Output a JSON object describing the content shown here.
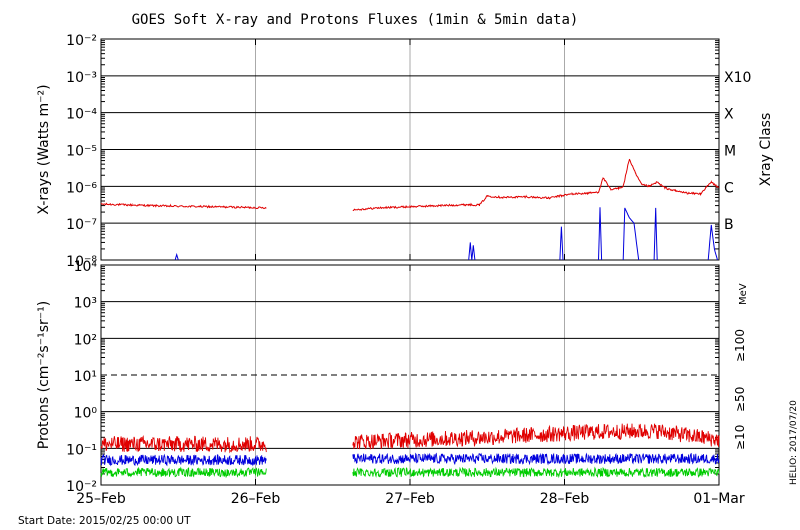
{
  "chart_data": [
    {
      "type": "line",
      "title": "GOES Soft X-ray and Protons Fluxes   (1min & 5min data)",
      "ylabel": "X-rays (Watts m⁻²)",
      "y_scale": "log",
      "ylim": [
        1e-08,
        0.01
      ],
      "y_ticks": [
        {
          "label": "10⁻²",
          "exp": -2
        },
        {
          "label": "10⁻³",
          "exp": -3
        },
        {
          "label": "10⁻⁴",
          "exp": -4
        },
        {
          "label": "10⁻⁵",
          "exp": -5
        },
        {
          "label": "10⁻⁶",
          "exp": -6
        },
        {
          "label": "10⁻⁷",
          "exp": -7
        },
        {
          "label": "10⁻⁸",
          "exp": -8
        }
      ],
      "right_axis_title": "Xray Class",
      "class_labels": [
        {
          "label": "X10",
          "exp": -3
        },
        {
          "label": "X",
          "exp": -4
        },
        {
          "label": "M",
          "exp": -5
        },
        {
          "label": "C",
          "exp": -6
        },
        {
          "label": "B",
          "exp": -7
        }
      ],
      "x_unit": "days since 2015-02-25 00:00 UT",
      "xlim": [
        0,
        4
      ],
      "series": [
        {
          "color": "#e00000",
          "segments": [
            [
              [
                0.0,
                3.3e-07
              ],
              [
                0.2,
                3.1e-07
              ],
              [
                0.45,
                2.9e-07
              ],
              [
                0.7,
                2.8e-07
              ],
              [
                0.9,
                2.7e-07
              ],
              [
                1.07,
                2.6e-07
              ]
            ],
            [
              [
                1.63,
                2.3e-07
              ],
              [
                1.8,
                2.6e-07
              ],
              [
                2.0,
                2.8e-07
              ],
              [
                2.2,
                3e-07
              ],
              [
                2.38,
                3.2e-07
              ],
              [
                2.45,
                3.1e-07
              ],
              [
                2.5,
                5.5e-07
              ],
              [
                2.6,
                5e-07
              ],
              [
                2.75,
                5.2e-07
              ],
              [
                2.9,
                4.8e-07
              ],
              [
                2.98,
                5.6e-07
              ],
              [
                3.05,
                6.2e-07
              ],
              [
                3.15,
                6.5e-07
              ],
              [
                3.22,
                7e-07
              ],
              [
                3.25,
                1.7e-06
              ],
              [
                3.3,
                8e-07
              ],
              [
                3.35,
                9e-07
              ],
              [
                3.38,
                1e-06
              ],
              [
                3.42,
                5.5e-06
              ],
              [
                3.46,
                2.2e-06
              ],
              [
                3.5,
                1.1e-06
              ],
              [
                3.55,
                1e-06
              ],
              [
                3.6,
                1.3e-06
              ],
              [
                3.65,
                9e-07
              ],
              [
                3.72,
                7.5e-07
              ],
              [
                3.8,
                6.5e-07
              ],
              [
                3.88,
                6.3e-07
              ],
              [
                3.95,
                1.3e-06
              ],
              [
                4.0,
                9e-07
              ]
            ]
          ]
        },
        {
          "color": "#0000dd",
          "segments": [
            [
              [
                0.48,
                1e-08
              ],
              [
                0.49,
                1.4e-08
              ],
              [
                0.5,
                1e-08
              ]
            ],
            [
              [
                2.38,
                1e-08
              ],
              [
                2.39,
                3e-08
              ],
              [
                2.4,
                1e-08
              ],
              [
                2.41,
                2.5e-08
              ],
              [
                2.42,
                1e-08
              ]
            ],
            [
              [
                2.97,
                1e-08
              ],
              [
                2.98,
                8e-08
              ],
              [
                2.99,
                1e-08
              ]
            ],
            [
              [
                3.22,
                1e-08
              ],
              [
                3.23,
                2.7e-07
              ],
              [
                3.24,
                1e-08
              ]
            ],
            [
              [
                3.38,
                1e-08
              ],
              [
                3.39,
                2.6e-07
              ],
              [
                3.42,
                1.4e-07
              ],
              [
                3.45,
                1e-07
              ],
              [
                3.48,
                1e-08
              ]
            ],
            [
              [
                3.58,
                1e-08
              ],
              [
                3.59,
                2.6e-07
              ],
              [
                3.6,
                1e-08
              ]
            ],
            [
              [
                3.93,
                1e-08
              ],
              [
                3.95,
                9e-08
              ],
              [
                3.97,
                2e-08
              ],
              [
                3.99,
                1e-08
              ]
            ]
          ]
        }
      ]
    },
    {
      "type": "line",
      "ylabel": "Protons (cm⁻²s⁻¹sr⁻¹)",
      "y_scale": "log",
      "ylim": [
        0.01,
        10000
      ],
      "y_ticks": [
        {
          "label": "10⁴",
          "exp": 4
        },
        {
          "label": "10³",
          "exp": 3
        },
        {
          "label": "10²",
          "exp": 2
        },
        {
          "label": "10¹",
          "exp": 1
        },
        {
          "label": "10⁰",
          "exp": 0
        },
        {
          "label": "10⁻¹",
          "exp": -1
        },
        {
          "label": "10⁻²",
          "exp": -2
        }
      ],
      "threshold_exp": 1,
      "x_unit": "days since 2015-02-25 00:00 UT",
      "xlim": [
        0,
        4
      ],
      "xticks": [
        {
          "label": "25–Feb",
          "value": 0
        },
        {
          "label": "26–Feb",
          "value": 1
        },
        {
          "label": "27–Feb",
          "value": 2
        },
        {
          "label": "28–Feb",
          "value": 3
        },
        {
          "label": "01–Mar",
          "value": 4
        }
      ],
      "data_gap": [
        1.07,
        1.63
      ],
      "series": [
        {
          "name": "≥10",
          "color": "#e00000",
          "baseline": [
            [
              0,
              0.13
            ],
            [
              1.07,
              0.13
            ],
            [
              1.63,
              0.15
            ],
            [
              2.5,
              0.2
            ],
            [
              3.2,
              0.28
            ],
            [
              3.6,
              0.3
            ],
            [
              4.0,
              0.17
            ]
          ],
          "spread": 0.22
        },
        {
          "name": "≥50",
          "color": "#0000dd",
          "baseline": [
            [
              0,
              0.048
            ],
            [
              1.07,
              0.048
            ],
            [
              1.63,
              0.052
            ],
            [
              4.0,
              0.052
            ]
          ],
          "spread": 0.14
        },
        {
          "name": "≥100",
          "color": "#00cc00",
          "baseline": [
            [
              0,
              0.022
            ],
            [
              1.07,
              0.022
            ],
            [
              1.63,
              0.022
            ],
            [
              4.0,
              0.022
            ]
          ],
          "spread": 0.12
        }
      ],
      "unit_label": "MeV"
    }
  ],
  "footer": {
    "start_date": "Start Date: 2015/02/25 00:00 UT",
    "credit": "HELIO: 2017/07/20"
  }
}
